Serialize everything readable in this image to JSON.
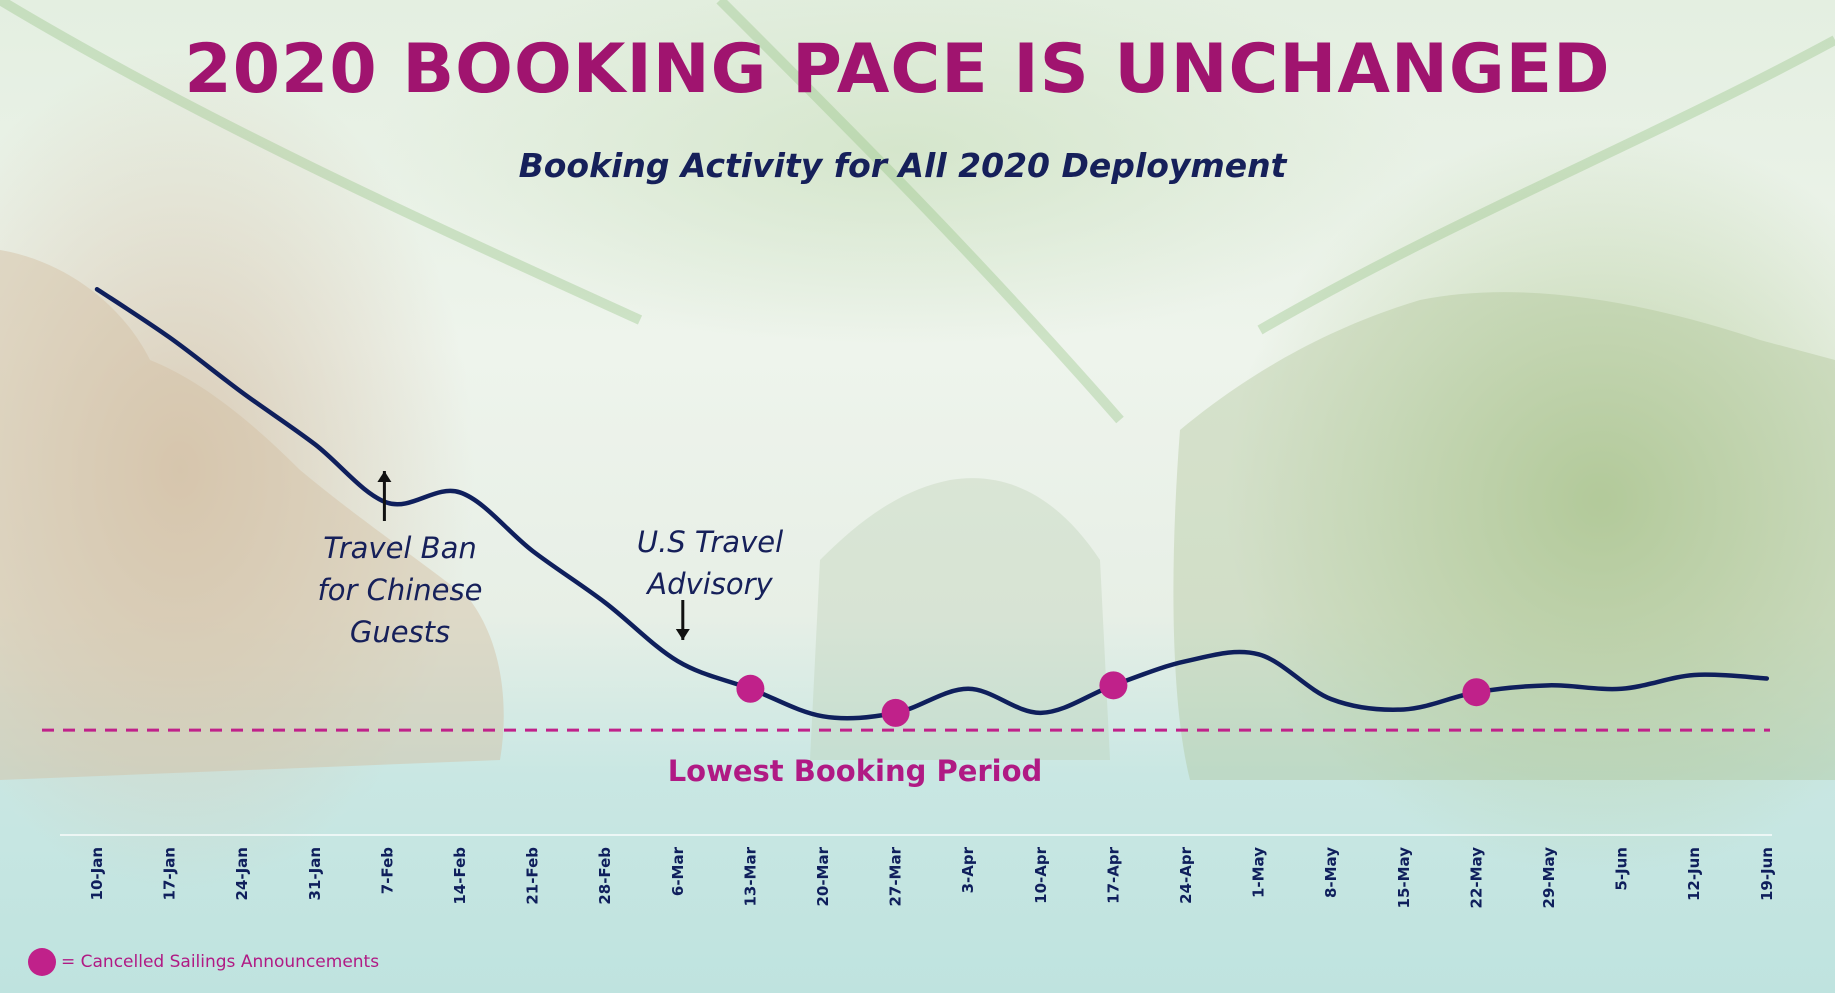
{
  "header": {
    "title": "2020 BOOKING PACE IS UNCHANGED",
    "subtitle": "Booking Activity for All 2020 Deployment"
  },
  "annotations": {
    "travel_ban": "Travel Ban\nfor Chinese\nGuests",
    "us_advisory": "U.S Travel\nAdvisory",
    "lowest_period": "Lowest Booking Period"
  },
  "legend": {
    "label": "= Cancelled Sailings Announcements"
  },
  "colors": {
    "title": "#a0146f",
    "subtitle": "#16205a",
    "line": "#0f1f5c",
    "marker": "#c0218a",
    "baseline": "#c0218a"
  },
  "chart_data": {
    "type": "line",
    "title": "2020 BOOKING PACE IS UNCHANGED",
    "subtitle": "Booking Activity for All 2020 Deployment",
    "xlabel": "",
    "ylabel": "",
    "y_axis_shown": false,
    "grid": false,
    "categories": [
      "10-Jan",
      "17-Jan",
      "24-Jan",
      "31-Jan",
      "7-Feb",
      "14-Feb",
      "21-Feb",
      "28-Feb",
      "6-Mar",
      "13-Mar",
      "20-Mar",
      "27-Mar",
      "3-Apr",
      "10-Apr",
      "17-Apr",
      "24-Apr",
      "1-May",
      "8-May",
      "15-May",
      "22-May",
      "29-May",
      "5-Jun",
      "12-Jun",
      "19-Jun"
    ],
    "series": [
      {
        "values": [
          100,
          86,
          70,
          55,
          38,
          41,
          24,
          9,
          -8,
          -16,
          -24,
          -23,
          -16,
          -23,
          -15,
          -8,
          -6,
          -19,
          -22,
          -17,
          -15,
          -16,
          -12,
          -13
        ]
      }
    ],
    "ylim": [
      -30,
      105
    ],
    "cancelled_sailings_markers": [
      "13-Mar",
      "27-Mar",
      "17-Apr",
      "22-May"
    ],
    "baseline_value": -28,
    "baseline_label": "Lowest Booking Period",
    "event_annotations": [
      {
        "x": "7-Feb",
        "text": "Travel Ban for Chinese Guests"
      },
      {
        "x": "6-Mar",
        "text": "U.S Travel Advisory"
      }
    ]
  }
}
